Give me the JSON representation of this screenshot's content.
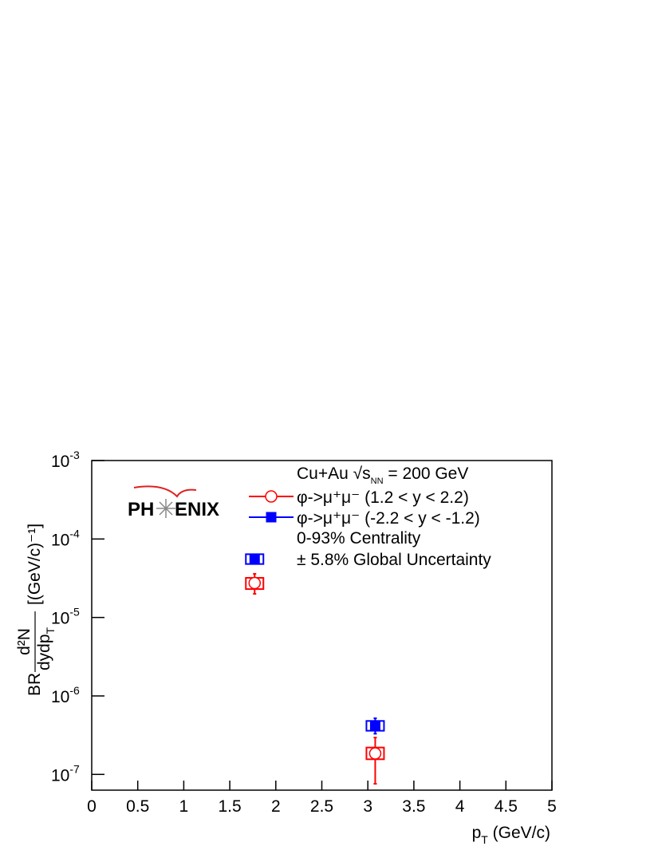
{
  "chart_data": {
    "type": "errorbar",
    "x_label": {
      "main": "p",
      "sub": "T",
      "unit": " (GeV/c)"
    },
    "y_label": {
      "prefix": "BR",
      "numerator": "d²N",
      "denominator": "dydp",
      "denominator_sub": "T",
      "unit": "[(GeV/c)⁻¹]"
    },
    "annotations": {
      "system": "Cu+Au √s",
      "system_sub": "NN",
      "energy": " = 200 GeV",
      "centrality": "0-93% Centrality",
      "global": "± 5.8% Global Uncertainty"
    },
    "logo": {
      "left": "PH",
      "right": "ENIX"
    },
    "xlim": [
      0,
      5
    ],
    "xticks": [
      0,
      0.5,
      1,
      1.5,
      2,
      2.5,
      3,
      3.5,
      4,
      4.5,
      5
    ],
    "ylim": [
      6.3e-08,
      0.001
    ],
    "log_y": true,
    "yticks": [
      {
        "value": 0.001,
        "label": "10",
        "label_sup": "-3"
      },
      {
        "value": 0.0001,
        "label": "10",
        "label_sup": "-4"
      },
      {
        "value": 1e-05,
        "label": "10",
        "label_sup": "-5"
      },
      {
        "value": 1e-06,
        "label": "10",
        "label_sup": "-6"
      },
      {
        "value": 1e-07,
        "label": "10",
        "label_sup": "-7"
      }
    ],
    "series": [
      {
        "name": "φ->μ⁺μ⁻ (1.2 < y < 2.2)",
        "color": "#ff0000",
        "marker": "open-circle",
        "x": [
          1.77,
          3.08
        ],
        "values": [
          2.75e-05,
          1.85e-07
        ],
        "y_low": [
          2e-05,
          7.6e-08
        ],
        "y_high": [
          3.6e-05,
          2.95e-07
        ],
        "sys_low": [
          2.3e-05,
          1.56e-07
        ],
        "sys_high": [
          3.2e-05,
          2.2e-07
        ]
      },
      {
        "name": "φ->μ⁺μ⁻ (-2.2 < y < -1.2)",
        "color": "#0000ff",
        "marker": "filled-square",
        "x": [
          1.77,
          3.08
        ],
        "values": [
          5.56e-05,
          4.2e-07
        ],
        "y_low": [
          5e-05,
          3.3e-07
        ],
        "y_high": [
          6.1e-05,
          5.2e-07
        ],
        "sys_low": [
          4.8e-05,
          3.6e-07
        ],
        "sys_high": [
          6.4e-05,
          4.8e-07
        ]
      }
    ]
  }
}
